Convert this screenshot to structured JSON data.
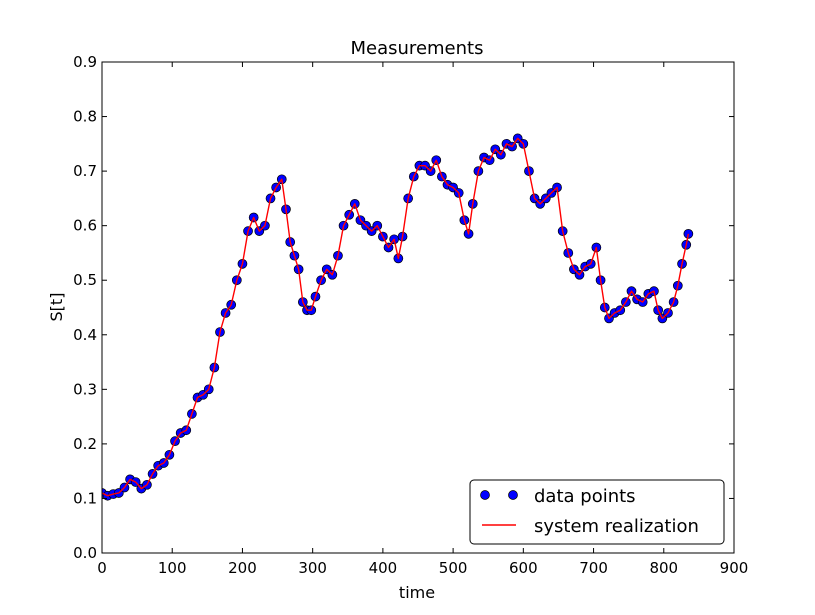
{
  "chart_data": {
    "type": "scatter",
    "title": "Measurements",
    "xlabel": "time",
    "ylabel": "S[t]",
    "xlim": [
      0,
      900
    ],
    "ylim": [
      0.0,
      0.9
    ],
    "xticks": [
      "0",
      "100",
      "200",
      "300",
      "400",
      "500",
      "600",
      "700",
      "800",
      "900"
    ],
    "yticks": [
      "0.0",
      "0.1",
      "0.2",
      "0.3",
      "0.4",
      "0.5",
      "0.6",
      "0.7",
      "0.8",
      "0.9"
    ],
    "grid": false,
    "legend_position": "lower-right",
    "series": [
      {
        "name": "data points",
        "kind": "scatter",
        "color": "#0000ff",
        "x": [
          0,
          8,
          16,
          24,
          32,
          40,
          48,
          56,
          64,
          72,
          80,
          88,
          96,
          104,
          112,
          120,
          128,
          136,
          144,
          152,
          160,
          168,
          176,
          184,
          192,
          200,
          208,
          216,
          224,
          232,
          240,
          248,
          256,
          262,
          268,
          274,
          280,
          286,
          292,
          298,
          304,
          312,
          320,
          328,
          336,
          344,
          352,
          360,
          368,
          376,
          384,
          392,
          400,
          408,
          416,
          422,
          428,
          436,
          444,
          452,
          460,
          468,
          476,
          484,
          492,
          500,
          508,
          516,
          522,
          528,
          536,
          544,
          552,
          560,
          568,
          576,
          584,
          592,
          600,
          608,
          616,
          624,
          632,
          640,
          648,
          656,
          664,
          672,
          680,
          688,
          696,
          704,
          710,
          716,
          722,
          730,
          738,
          746,
          754,
          762,
          770,
          778,
          786,
          792,
          798,
          806,
          814,
          820,
          826,
          832,
          835
        ],
        "y": [
          0.11,
          0.105,
          0.108,
          0.11,
          0.12,
          0.135,
          0.13,
          0.118,
          0.125,
          0.145,
          0.16,
          0.165,
          0.18,
          0.205,
          0.22,
          0.225,
          0.255,
          0.285,
          0.29,
          0.3,
          0.34,
          0.405,
          0.44,
          0.455,
          0.5,
          0.53,
          0.59,
          0.615,
          0.59,
          0.6,
          0.65,
          0.67,
          0.685,
          0.63,
          0.57,
          0.545,
          0.52,
          0.46,
          0.445,
          0.445,
          0.47,
          0.5,
          0.52,
          0.51,
          0.545,
          0.6,
          0.62,
          0.64,
          0.61,
          0.6,
          0.59,
          0.6,
          0.58,
          0.56,
          0.575,
          0.54,
          0.58,
          0.65,
          0.69,
          0.71,
          0.71,
          0.7,
          0.72,
          0.69,
          0.675,
          0.67,
          0.66,
          0.61,
          0.585,
          0.64,
          0.7,
          0.725,
          0.72,
          0.74,
          0.73,
          0.75,
          0.745,
          0.76,
          0.75,
          0.7,
          0.65,
          0.64,
          0.65,
          0.66,
          0.67,
          0.59,
          0.55,
          0.52,
          0.51,
          0.525,
          0.53,
          0.56,
          0.5,
          0.45,
          0.43,
          0.44,
          0.445,
          0.46,
          0.48,
          0.465,
          0.46,
          0.475,
          0.48,
          0.445,
          0.43,
          0.44,
          0.46,
          0.49,
          0.53,
          0.565,
          0.585
        ]
      },
      {
        "name": "system realization",
        "kind": "line",
        "color": "#ff0000",
        "x": [
          0,
          8,
          16,
          24,
          32,
          40,
          48,
          56,
          64,
          72,
          80,
          88,
          96,
          104,
          112,
          120,
          128,
          136,
          144,
          152,
          160,
          168,
          176,
          184,
          192,
          200,
          208,
          216,
          224,
          232,
          240,
          248,
          256,
          262,
          268,
          274,
          280,
          286,
          292,
          298,
          304,
          312,
          320,
          328,
          336,
          344,
          352,
          360,
          368,
          376,
          384,
          392,
          400,
          408,
          416,
          422,
          428,
          436,
          444,
          452,
          460,
          468,
          476,
          484,
          492,
          500,
          508,
          516,
          522,
          528,
          536,
          544,
          552,
          560,
          568,
          576,
          584,
          592,
          600,
          608,
          616,
          624,
          632,
          640,
          648,
          656,
          664,
          672,
          680,
          688,
          696,
          704,
          710,
          716,
          722,
          730,
          738,
          746,
          754,
          762,
          770,
          778,
          786,
          792,
          798,
          806,
          814,
          820,
          826,
          832,
          835
        ],
        "y": [
          0.11,
          0.105,
          0.108,
          0.11,
          0.12,
          0.135,
          0.13,
          0.118,
          0.125,
          0.145,
          0.16,
          0.165,
          0.18,
          0.205,
          0.22,
          0.225,
          0.255,
          0.285,
          0.29,
          0.3,
          0.34,
          0.405,
          0.44,
          0.455,
          0.5,
          0.53,
          0.59,
          0.615,
          0.59,
          0.6,
          0.65,
          0.67,
          0.685,
          0.63,
          0.57,
          0.545,
          0.52,
          0.46,
          0.445,
          0.445,
          0.47,
          0.5,
          0.52,
          0.51,
          0.545,
          0.6,
          0.62,
          0.64,
          0.61,
          0.6,
          0.59,
          0.6,
          0.58,
          0.56,
          0.575,
          0.54,
          0.58,
          0.65,
          0.69,
          0.71,
          0.71,
          0.7,
          0.72,
          0.69,
          0.675,
          0.67,
          0.66,
          0.61,
          0.585,
          0.64,
          0.7,
          0.725,
          0.72,
          0.74,
          0.73,
          0.75,
          0.745,
          0.76,
          0.75,
          0.7,
          0.65,
          0.64,
          0.65,
          0.66,
          0.67,
          0.59,
          0.55,
          0.52,
          0.51,
          0.525,
          0.53,
          0.56,
          0.5,
          0.45,
          0.43,
          0.44,
          0.445,
          0.46,
          0.48,
          0.465,
          0.46,
          0.475,
          0.48,
          0.445,
          0.43,
          0.44,
          0.46,
          0.49,
          0.53,
          0.565,
          0.585
        ]
      }
    ]
  }
}
